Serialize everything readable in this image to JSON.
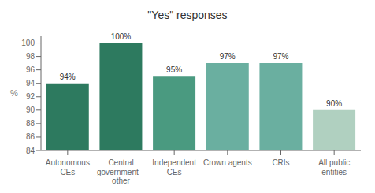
{
  "chart_data": {
    "type": "bar",
    "title": "\"Yes\" responses",
    "categories": [
      "Autonomous\nCEs",
      "Central\ngovernment –\nother",
      "Independent\nCEs",
      "Crown agents",
      "CRIs",
      "All public\nentities"
    ],
    "values": [
      94,
      100,
      95,
      97,
      97,
      90
    ],
    "value_labels": [
      "94%",
      "100%",
      "95%",
      "97%",
      "97%",
      "90%"
    ],
    "colors": [
      "#2d7a5f",
      "#2d7a5f",
      "#4a9a80",
      "#6aafa0",
      "#6aafa0",
      "#b0d0c0"
    ],
    "ylabel": "%",
    "ylim": [
      84,
      101
    ],
    "yticks": [
      84,
      86,
      88,
      90,
      92,
      94,
      96,
      98,
      100
    ],
    "data_labels": true,
    "grid": false
  }
}
